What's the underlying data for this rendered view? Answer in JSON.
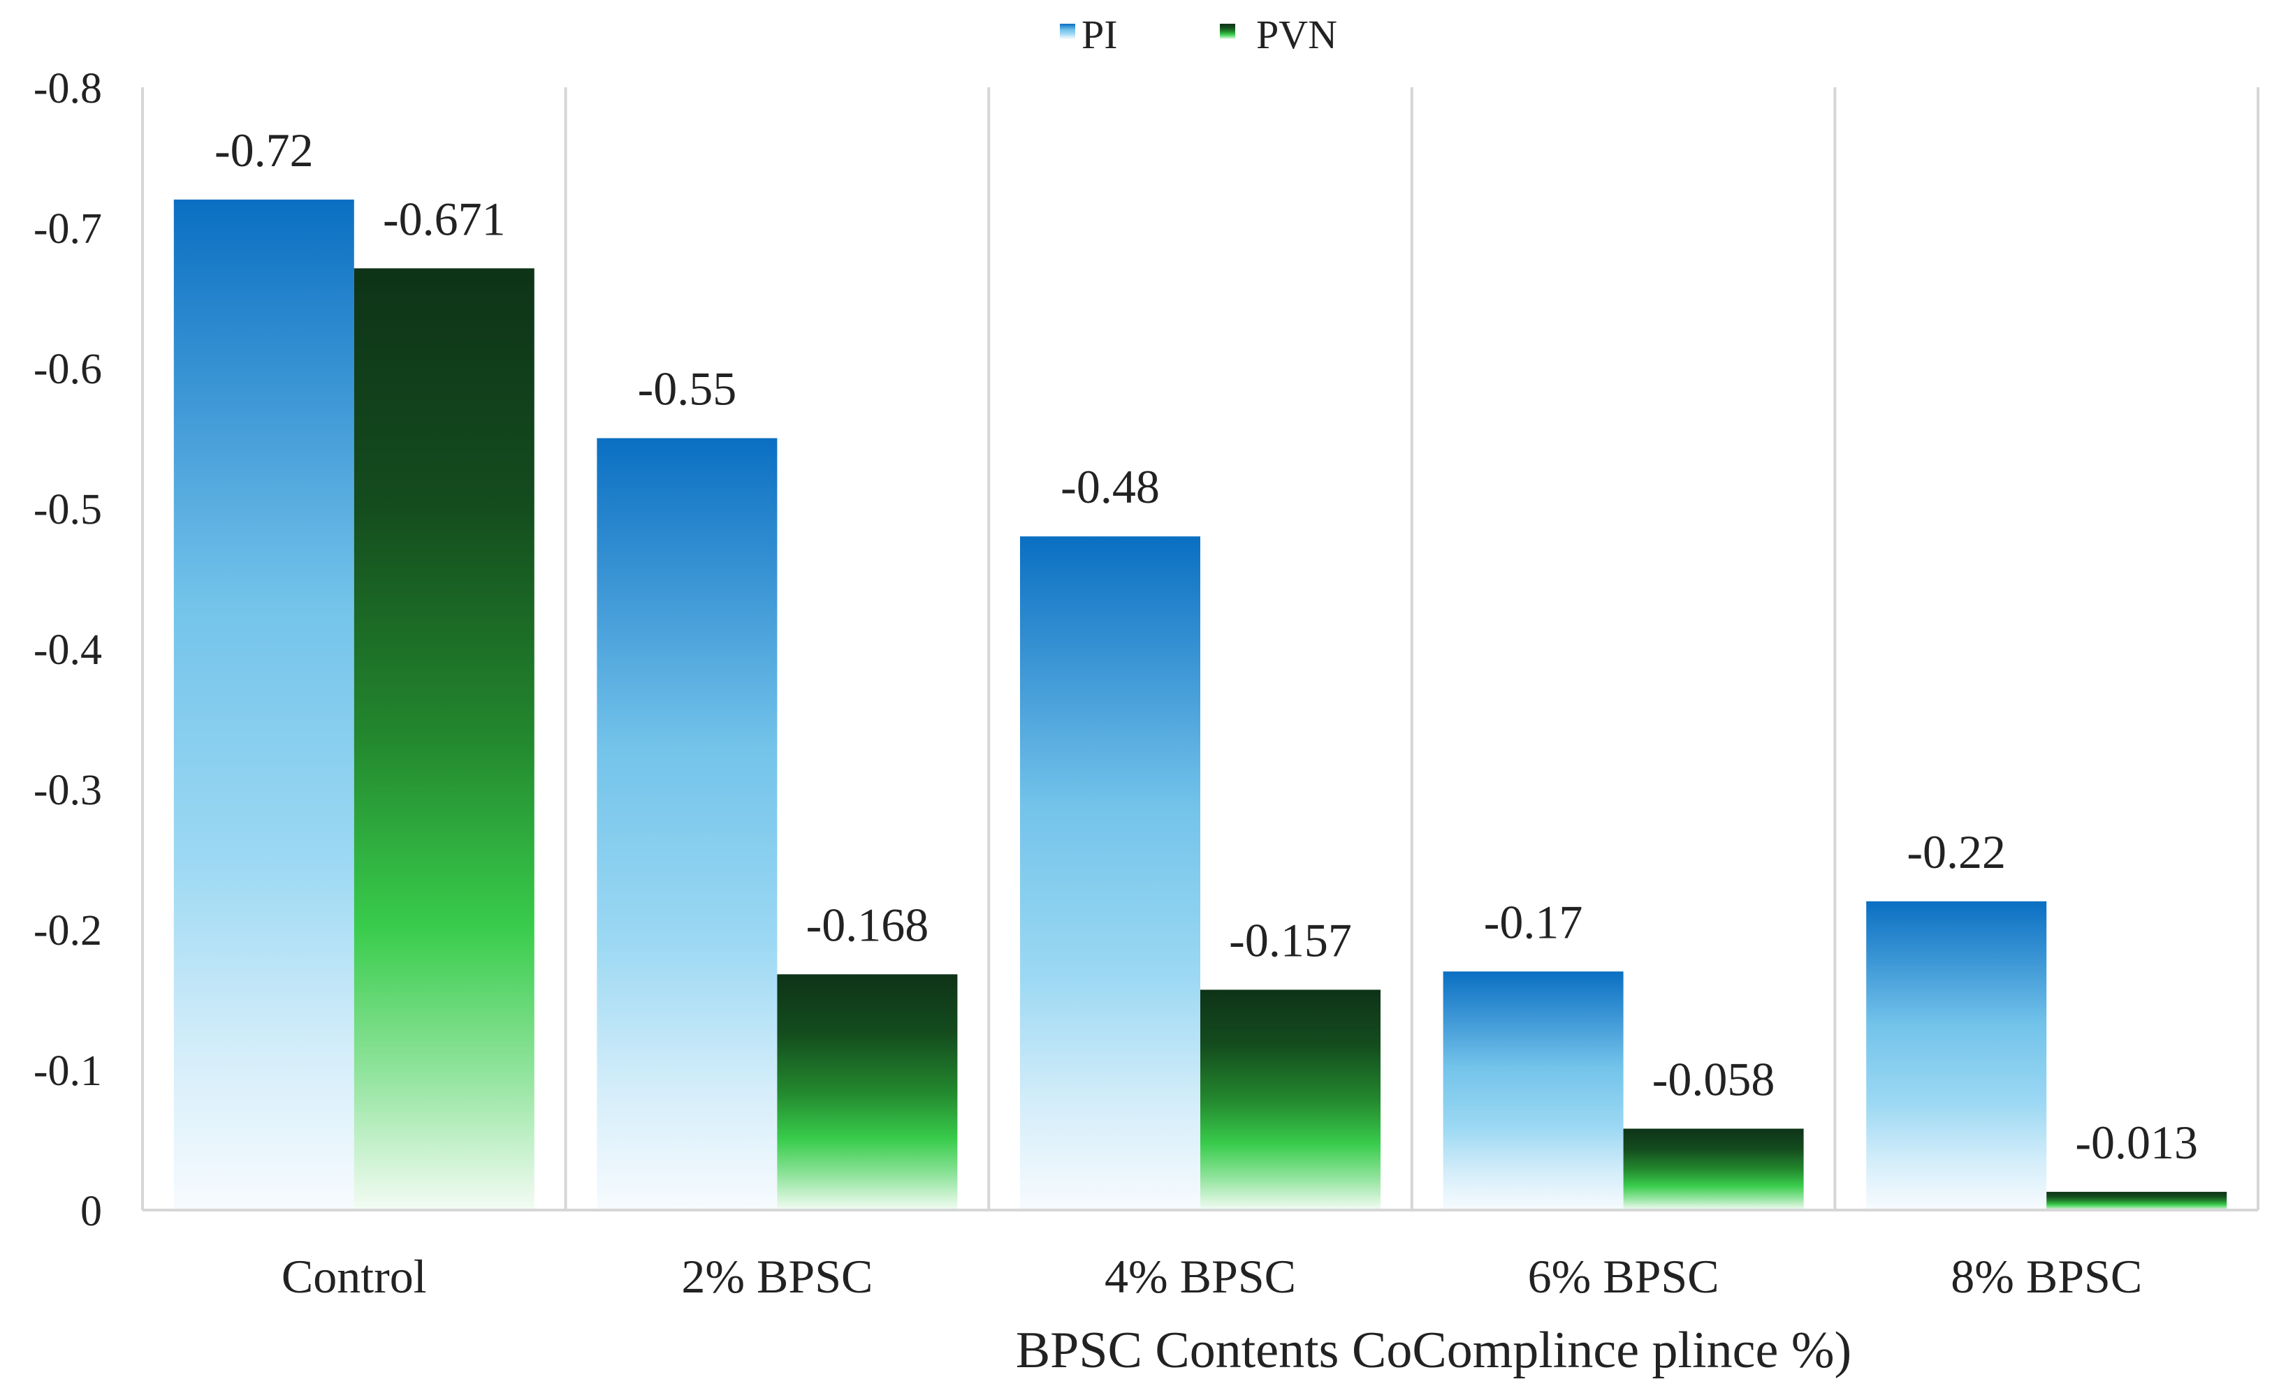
{
  "chart_data": {
    "type": "bar",
    "title": "",
    "xlabel": "BPSC Contents CoComplince plince %)",
    "ylabel": "",
    "ylim": [
      0,
      -0.8
    ],
    "yticks": [
      {
        "value": -0.8,
        "label": "-0.8"
      },
      {
        "value": -0.7,
        "label": "-0.7"
      },
      {
        "value": -0.6,
        "label": "-0.6"
      },
      {
        "value": -0.5,
        "label": "-0.5"
      },
      {
        "value": -0.4,
        "label": "-0.4"
      },
      {
        "value": -0.3,
        "label": "-0.3"
      },
      {
        "value": -0.2,
        "label": "-0.2"
      },
      {
        "value": -0.1,
        "label": "-0.1"
      },
      {
        "value": 0,
        "label": "0"
      }
    ],
    "categories": [
      "Control",
      "2% BPSC",
      "4% BPSC",
      "6% BPSC",
      "8% BPSC"
    ],
    "series": [
      {
        "name": "PI",
        "values": [
          -0.72,
          -0.55,
          -0.48,
          -0.17,
          -0.22
        ],
        "labels": [
          "-0.72",
          "-0.55",
          "-0.48",
          "-0.17",
          "-0.22"
        ],
        "color_top": "#0a6fc2",
        "color_bottom": "#ffffff"
      },
      {
        "name": "PVN",
        "values": [
          -0.671,
          -0.168,
          -0.157,
          -0.058,
          -0.013
        ],
        "labels": [
          "-0.671",
          "-0.168",
          "-0.157",
          "-0.058",
          "-0.013"
        ],
        "color_top": "#0e3318",
        "color_bottom": "#ffffff"
      }
    ],
    "legend_position": "top-center",
    "grid": "vertical separators between categories"
  }
}
